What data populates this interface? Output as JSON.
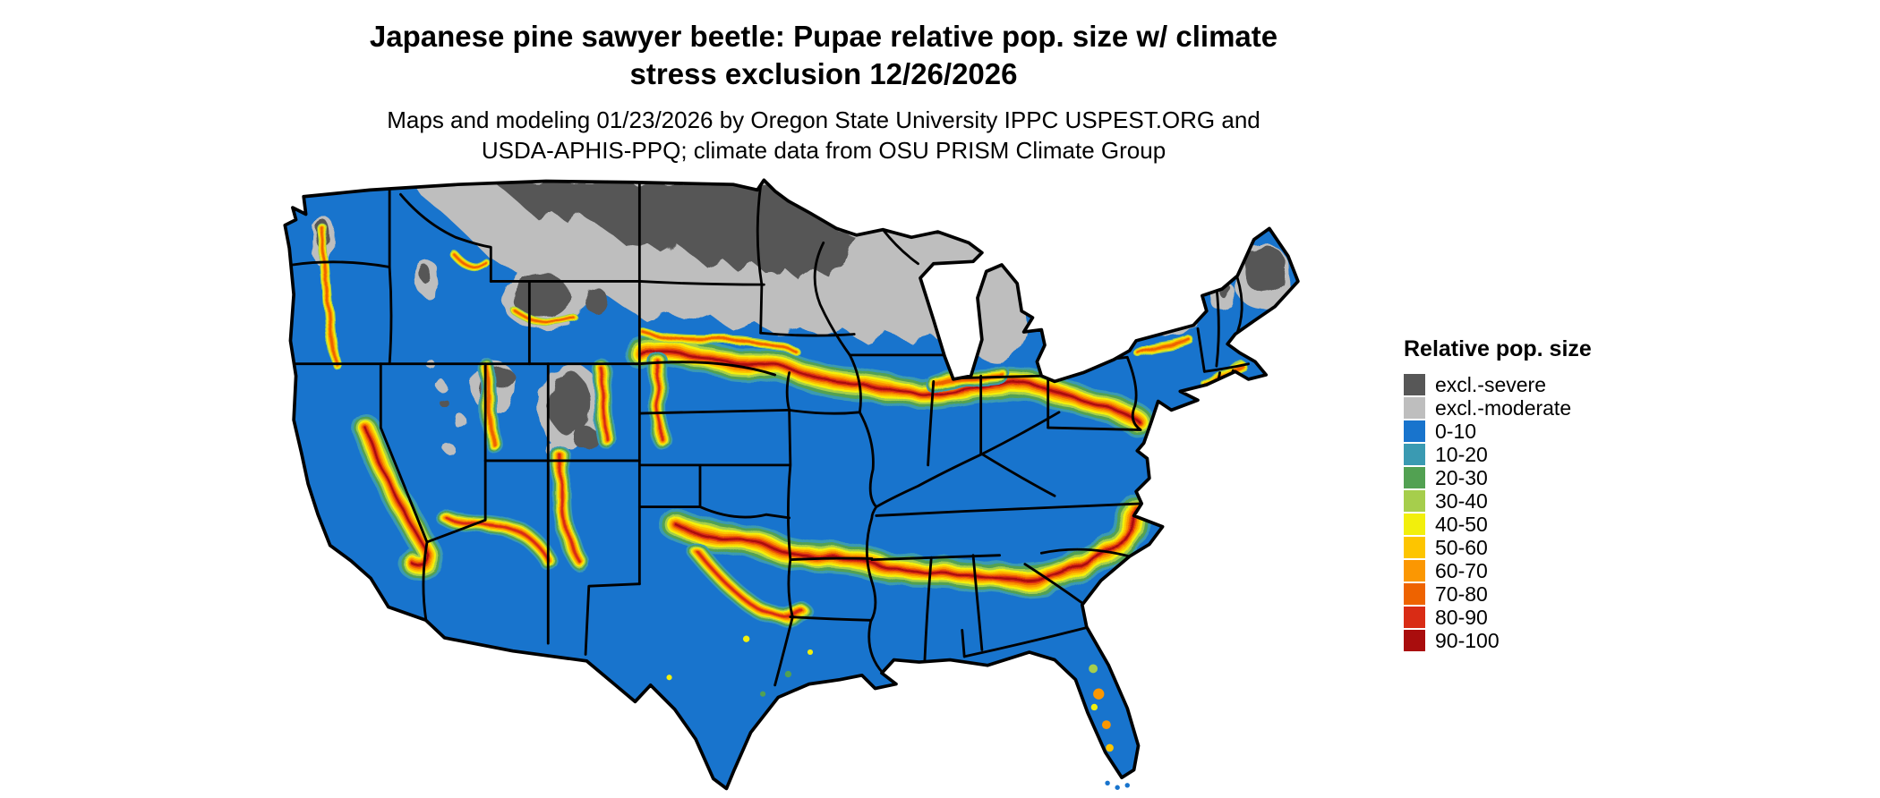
{
  "header": {
    "title_lines": [
      "Japanese pine sawyer beetle: Pupae relative pop. size w/ climate",
      "stress exclusion 12/26/2026"
    ],
    "subtitle_lines": [
      "Maps and modeling 01/23/2026 by Oregon State University IPPC USPEST.ORG and",
      "USDA-APHIS-PPQ; climate data from OSU PRISM Climate Group"
    ]
  },
  "map": {
    "region": "Contiguous United States",
    "state_border_color": "#000000",
    "background_color": "#ffffff"
  },
  "legend": {
    "title": "Relative pop. size",
    "items": [
      {
        "key": "sev",
        "label": "excl.-severe",
        "color": "#575757"
      },
      {
        "key": "mod",
        "label": "excl.-moderate",
        "color": "#bebebe"
      },
      {
        "key": "b0",
        "label": "0-10",
        "color": "#1874cd"
      },
      {
        "key": "b10",
        "label": "10-20",
        "color": "#3a9ab2"
      },
      {
        "key": "b20",
        "label": "20-30",
        "color": "#52a152"
      },
      {
        "key": "b30",
        "label": "30-40",
        "color": "#a6ce4c"
      },
      {
        "key": "b40",
        "label": "40-50",
        "color": "#f2ef0c"
      },
      {
        "key": "b50",
        "label": "50-60",
        "color": "#fdc500"
      },
      {
        "key": "b60",
        "label": "60-70",
        "color": "#fb9702"
      },
      {
        "key": "b70",
        "label": "70-80",
        "color": "#ee6300"
      },
      {
        "key": "b80",
        "label": "80-90",
        "color": "#d92c15"
      },
      {
        "key": "b90",
        "label": "90-100",
        "color": "#a90d0d"
      }
    ]
  }
}
